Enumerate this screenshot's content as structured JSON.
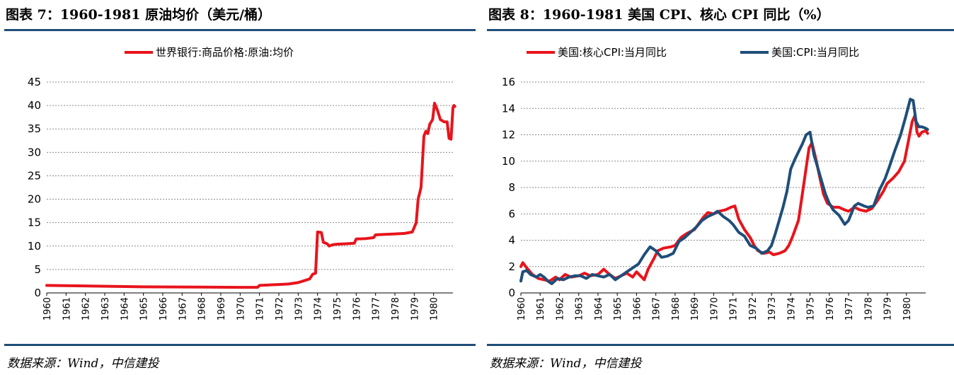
{
  "left": {
    "title": "图表 7：1960-1981 原油均价（美元/桶）",
    "source": "数据来源：Wind，中信建投",
    "chart_data": {
      "type": "line",
      "ylim": [
        0,
        45
      ],
      "yticks": [
        0,
        5,
        10,
        15,
        20,
        25,
        30,
        35,
        40,
        45
      ],
      "xticks": [
        "1960",
        "1961",
        "1962",
        "1963",
        "1964",
        "1965",
        "1966",
        "1967",
        "1968",
        "1969",
        "1970",
        "1971",
        "1972",
        "1973",
        "1974",
        "1975",
        "1976",
        "1977",
        "1978",
        "1979",
        "1980"
      ],
      "xlim": [
        1960,
        1981
      ],
      "grid": true,
      "legend_position": "top",
      "series": [
        {
          "name": "世界银行:商品价格:原油:均价",
          "color": "#e8141c",
          "points": [
            [
              1960.0,
              1.6
            ],
            [
              1962.0,
              1.5
            ],
            [
              1965.0,
              1.3
            ],
            [
              1968.0,
              1.25
            ],
            [
              1970.0,
              1.2
            ],
            [
              1970.9,
              1.2
            ],
            [
              1971.0,
              1.6
            ],
            [
              1971.5,
              1.7
            ],
            [
              1972.0,
              1.8
            ],
            [
              1972.5,
              1.9
            ],
            [
              1973.0,
              2.2
            ],
            [
              1973.3,
              2.6
            ],
            [
              1973.6,
              3.0
            ],
            [
              1973.75,
              4.0
            ],
            [
              1973.9,
              4.2
            ],
            [
              1974.0,
              13.0
            ],
            [
              1974.2,
              12.9
            ],
            [
              1974.3,
              10.8
            ],
            [
              1974.5,
              10.5
            ],
            [
              1974.6,
              10.0
            ],
            [
              1974.8,
              10.3
            ],
            [
              1975.0,
              10.4
            ],
            [
              1975.5,
              10.5
            ],
            [
              1975.9,
              10.6
            ],
            [
              1976.0,
              11.5
            ],
            [
              1976.5,
              11.6
            ],
            [
              1976.9,
              11.8
            ],
            [
              1977.0,
              12.4
            ],
            [
              1977.5,
              12.5
            ],
            [
              1978.0,
              12.6
            ],
            [
              1978.5,
              12.7
            ],
            [
              1978.9,
              13.0
            ],
            [
              1979.1,
              15.0
            ],
            [
              1979.2,
              20.0
            ],
            [
              1979.35,
              22.5
            ],
            [
              1979.5,
              33.5
            ],
            [
              1979.6,
              34.5
            ],
            [
              1979.7,
              34.0
            ],
            [
              1979.8,
              36.0
            ],
            [
              1979.95,
              37.0
            ],
            [
              1980.05,
              40.5
            ],
            [
              1980.2,
              39.0
            ],
            [
              1980.35,
              37.0
            ],
            [
              1980.55,
              36.5
            ],
            [
              1980.7,
              36.5
            ],
            [
              1980.8,
              33.0
            ],
            [
              1980.9,
              32.8
            ],
            [
              1981.0,
              39.5
            ],
            [
              1981.05,
              40.0
            ],
            [
              1981.1,
              39.8
            ]
          ]
        }
      ]
    }
  },
  "right": {
    "title": "图表 8：1960-1981 美国 CPI、核心 CPI 同比（%）",
    "source": "数据来源：Wind，中信建投",
    "chart_data": {
      "type": "line",
      "ylim": [
        0,
        16
      ],
      "yticks": [
        0,
        2,
        4,
        6,
        8,
        10,
        12,
        14,
        16
      ],
      "xticks": [
        "1960",
        "1961",
        "1962",
        "1963",
        "1964",
        "1965",
        "1966",
        "1967",
        "1968",
        "1969",
        "1970",
        "1971",
        "1972",
        "1973",
        "1974",
        "1975",
        "1976",
        "1977",
        "1978",
        "1979",
        "1980"
      ],
      "xlim": [
        1960,
        1981
      ],
      "grid": true,
      "legend_position": "top",
      "series": [
        {
          "name": "美国:核心CPI:当月同比",
          "color": "#e8141c",
          "points": [
            [
              1960.0,
              2.0
            ],
            [
              1960.1,
              2.3
            ],
            [
              1960.3,
              1.9
            ],
            [
              1960.6,
              1.4
            ],
            [
              1960.9,
              1.1
            ],
            [
              1961.2,
              1.0
            ],
            [
              1961.5,
              0.9
            ],
            [
              1961.8,
              1.2
            ],
            [
              1962.0,
              1.0
            ],
            [
              1962.3,
              1.4
            ],
            [
              1962.6,
              1.2
            ],
            [
              1963.0,
              1.3
            ],
            [
              1963.3,
              1.5
            ],
            [
              1963.6,
              1.3
            ],
            [
              1964.0,
              1.4
            ],
            [
              1964.3,
              1.8
            ],
            [
              1964.6,
              1.4
            ],
            [
              1964.9,
              1.1
            ],
            [
              1965.2,
              1.3
            ],
            [
              1965.5,
              1.5
            ],
            [
              1965.8,
              1.2
            ],
            [
              1966.0,
              1.6
            ],
            [
              1966.2,
              1.3
            ],
            [
              1966.4,
              1.0
            ],
            [
              1966.6,
              1.8
            ],
            [
              1966.9,
              2.6
            ],
            [
              1967.1,
              3.2
            ],
            [
              1967.4,
              3.4
            ],
            [
              1967.8,
              3.5
            ],
            [
              1968.0,
              3.6
            ],
            [
              1968.3,
              4.2
            ],
            [
              1968.6,
              4.5
            ],
            [
              1969.0,
              4.8
            ],
            [
              1969.3,
              5.4
            ],
            [
              1969.5,
              5.8
            ],
            [
              1969.7,
              6.1
            ],
            [
              1970.0,
              6.0
            ],
            [
              1970.3,
              6.2
            ],
            [
              1970.6,
              6.3
            ],
            [
              1970.9,
              6.5
            ],
            [
              1971.1,
              6.6
            ],
            [
              1971.3,
              5.6
            ],
            [
              1971.6,
              4.8
            ],
            [
              1971.9,
              4.2
            ],
            [
              1972.1,
              3.6
            ],
            [
              1972.3,
              3.2
            ],
            [
              1972.6,
              3.0
            ],
            [
              1972.9,
              3.1
            ],
            [
              1973.1,
              2.9
            ],
            [
              1973.4,
              3.0
            ],
            [
              1973.7,
              3.2
            ],
            [
              1973.9,
              3.6
            ],
            [
              1974.1,
              4.3
            ],
            [
              1974.4,
              5.5
            ],
            [
              1974.6,
              7.5
            ],
            [
              1974.8,
              9.5
            ],
            [
              1974.95,
              11.0
            ],
            [
              1975.1,
              11.4
            ],
            [
              1975.3,
              10.2
            ],
            [
              1975.5,
              8.8
            ],
            [
              1975.7,
              7.5
            ],
            [
              1975.9,
              6.8
            ],
            [
              1976.2,
              6.5
            ],
            [
              1976.5,
              6.5
            ],
            [
              1976.8,
              6.3
            ],
            [
              1977.0,
              6.2
            ],
            [
              1977.3,
              6.5
            ],
            [
              1977.6,
              6.3
            ],
            [
              1977.9,
              6.2
            ],
            [
              1978.2,
              6.4
            ],
            [
              1978.5,
              7.0
            ],
            [
              1978.8,
              7.7
            ],
            [
              1979.0,
              8.3
            ],
            [
              1979.3,
              8.7
            ],
            [
              1979.6,
              9.2
            ],
            [
              1979.9,
              10.0
            ],
            [
              1980.1,
              11.5
            ],
            [
              1980.3,
              13.0
            ],
            [
              1980.45,
              13.5
            ],
            [
              1980.55,
              12.2
            ],
            [
              1980.65,
              11.9
            ],
            [
              1980.8,
              12.2
            ],
            [
              1981.0,
              12.3
            ],
            [
              1981.1,
              12.1
            ]
          ]
        },
        {
          "name": "美国:CPI:当月同比",
          "color": "#1f4e79",
          "points": [
            [
              1960.0,
              0.9
            ],
            [
              1960.1,
              1.6
            ],
            [
              1960.3,
              1.7
            ],
            [
              1960.5,
              1.4
            ],
            [
              1960.8,
              1.2
            ],
            [
              1961.0,
              1.4
            ],
            [
              1961.2,
              1.2
            ],
            [
              1961.4,
              0.9
            ],
            [
              1961.6,
              0.7
            ],
            [
              1961.9,
              1.1
            ],
            [
              1962.2,
              1.0
            ],
            [
              1962.5,
              1.2
            ],
            [
              1962.8,
              1.3
            ],
            [
              1963.1,
              1.3
            ],
            [
              1963.4,
              1.1
            ],
            [
              1963.7,
              1.4
            ],
            [
              1964.0,
              1.3
            ],
            [
              1964.3,
              1.2
            ],
            [
              1964.6,
              1.4
            ],
            [
              1964.9,
              1.0
            ],
            [
              1965.2,
              1.3
            ],
            [
              1965.5,
              1.6
            ],
            [
              1965.8,
              1.9
            ],
            [
              1966.1,
              2.2
            ],
            [
              1966.4,
              2.9
            ],
            [
              1966.7,
              3.5
            ],
            [
              1967.0,
              3.2
            ],
            [
              1967.3,
              2.7
            ],
            [
              1967.6,
              2.8
            ],
            [
              1967.9,
              3.0
            ],
            [
              1968.2,
              3.9
            ],
            [
              1968.5,
              4.2
            ],
            [
              1968.8,
              4.6
            ],
            [
              1969.1,
              5.0
            ],
            [
              1969.4,
              5.5
            ],
            [
              1969.7,
              5.8
            ],
            [
              1970.0,
              6.0
            ],
            [
              1970.2,
              6.2
            ],
            [
              1970.5,
              5.8
            ],
            [
              1970.8,
              5.5
            ],
            [
              1971.0,
              5.2
            ],
            [
              1971.3,
              4.6
            ],
            [
              1971.6,
              4.3
            ],
            [
              1971.9,
              3.6
            ],
            [
              1972.2,
              3.4
            ],
            [
              1972.5,
              3.0
            ],
            [
              1972.8,
              3.2
            ],
            [
              1973.0,
              3.6
            ],
            [
              1973.2,
              4.5
            ],
            [
              1973.4,
              5.5
            ],
            [
              1973.6,
              6.5
            ],
            [
              1973.8,
              7.7
            ],
            [
              1974.0,
              9.4
            ],
            [
              1974.2,
              10.1
            ],
            [
              1974.4,
              10.7
            ],
            [
              1974.6,
              11.3
            ],
            [
              1974.8,
              12.0
            ],
            [
              1975.0,
              12.2
            ],
            [
              1975.2,
              10.5
            ],
            [
              1975.4,
              9.5
            ],
            [
              1975.6,
              8.5
            ],
            [
              1975.8,
              7.5
            ],
            [
              1976.0,
              6.8
            ],
            [
              1976.2,
              6.3
            ],
            [
              1976.5,
              5.9
            ],
            [
              1976.8,
              5.2
            ],
            [
              1977.0,
              5.5
            ],
            [
              1977.3,
              6.6
            ],
            [
              1977.5,
              6.8
            ],
            [
              1977.8,
              6.6
            ],
            [
              1978.0,
              6.5
            ],
            [
              1978.3,
              6.6
            ],
            [
              1978.6,
              7.8
            ],
            [
              1978.9,
              8.7
            ],
            [
              1979.1,
              9.5
            ],
            [
              1979.4,
              10.8
            ],
            [
              1979.7,
              12.0
            ],
            [
              1979.95,
              13.3
            ],
            [
              1980.2,
              14.7
            ],
            [
              1980.35,
              14.6
            ],
            [
              1980.5,
              13.0
            ],
            [
              1980.65,
              12.6
            ],
            [
              1980.8,
              12.6
            ],
            [
              1981.0,
              12.5
            ],
            [
              1981.1,
              12.4
            ]
          ]
        }
      ]
    }
  }
}
